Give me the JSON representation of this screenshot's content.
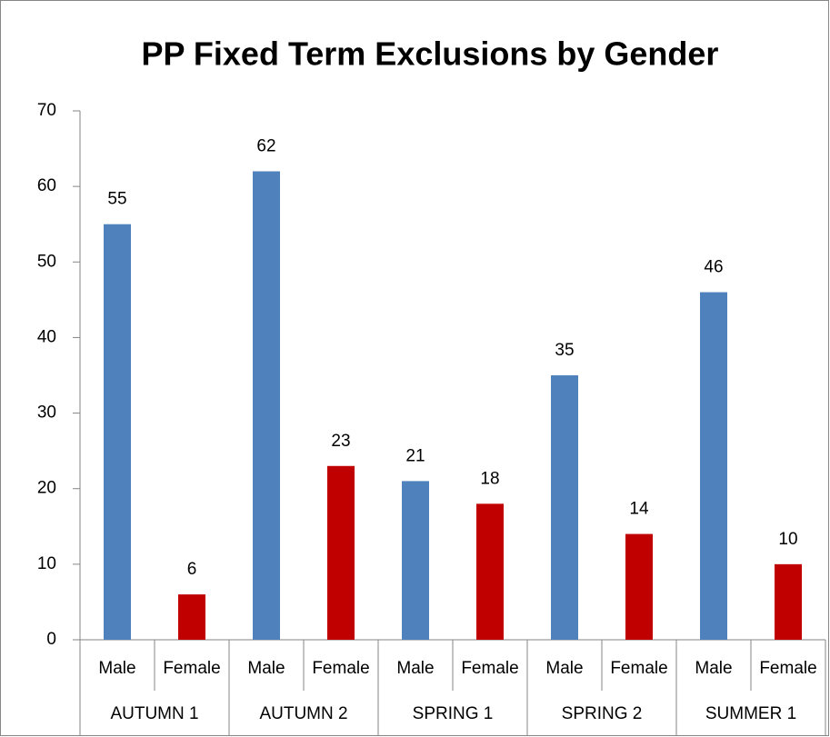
{
  "chart_data": {
    "type": "bar",
    "title": "PP Fixed Term Exclusions by Gender",
    "categories": [
      "Male",
      "Female",
      "Male",
      "Female",
      "Male",
      "Female",
      "Male",
      "Female",
      "Male",
      "Female"
    ],
    "groups": [
      "AUTUMN 1",
      "AUTUMN 2",
      "SPRING 1",
      "SPRING 2",
      "SUMMER 1"
    ],
    "values": [
      55,
      6,
      62,
      23,
      21,
      18,
      35,
      14,
      46,
      10
    ],
    "colors": [
      "#4f81bd",
      "#c00000",
      "#4f81bd",
      "#c00000",
      "#4f81bd",
      "#c00000",
      "#4f81bd",
      "#c00000",
      "#4f81bd",
      "#c00000"
    ],
    "ylim": [
      0,
      70
    ],
    "yticks": [
      0,
      10,
      20,
      30,
      40,
      50,
      60,
      70
    ],
    "grid": false
  }
}
